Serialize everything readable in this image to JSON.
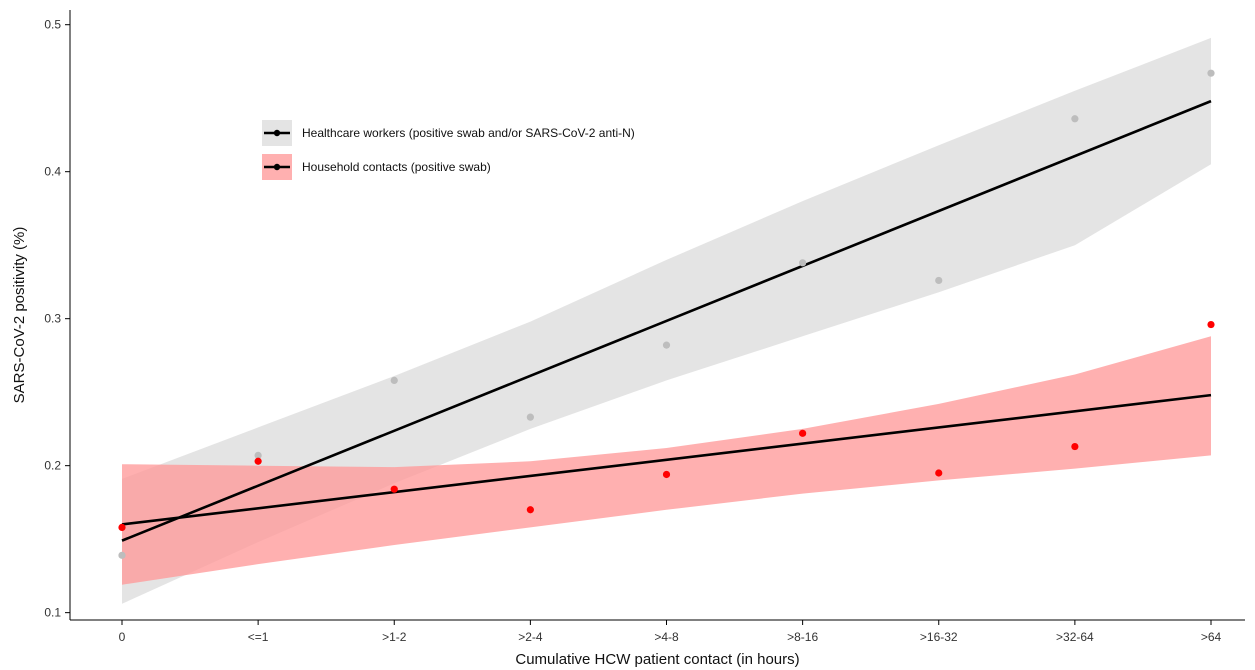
{
  "chart_data": {
    "type": "scatter",
    "title": "",
    "xlabel": "Cumulative HCW patient contact (in hours)",
    "ylabel": "SARS-CoV-2 positivity (%)",
    "categories": [
      "0",
      "<=1",
      ">1-2",
      ">2-4",
      ">4-8",
      ">8-16",
      ">16-32",
      ">32-64",
      ">64"
    ],
    "ylim": [
      0.095,
      0.51
    ],
    "yticks": [
      0.1,
      0.2,
      0.3,
      0.4,
      0.5
    ],
    "ytick_labels": [
      "0.1",
      "0.2",
      "0.3",
      "0.4",
      "0.5"
    ],
    "grid": false,
    "legend_position": "upper-left",
    "series": [
      {
        "name": "Healthcare workers (positive swab and/or SARS-CoV-2 anti-N)",
        "point_color": "#bdbdbd",
        "line_color": "#000000",
        "band_color": "#d9d9d9",
        "values": [
          0.139,
          0.207,
          0.258,
          0.233,
          0.282,
          0.338,
          0.326,
          0.436,
          0.467
        ],
        "fit": {
          "start": 0.149,
          "end": 0.448
        },
        "band_lower": [
          0.106,
          0.148,
          0.188,
          0.225,
          0.258,
          0.288,
          0.318,
          0.35,
          0.405
        ],
        "band_upper": [
          0.191,
          0.226,
          0.261,
          0.298,
          0.34,
          0.38,
          0.418,
          0.455,
          0.491
        ]
      },
      {
        "name": "Household contacts (positive swab)",
        "point_color": "#ff0000",
        "line_color": "#000000",
        "band_color": "#ff9a9a",
        "values": [
          0.158,
          0.203,
          0.184,
          0.17,
          0.194,
          0.222,
          0.195,
          0.213,
          0.296
        ],
        "fit": {
          "start": 0.16,
          "end": 0.248
        },
        "band_lower": [
          0.119,
          0.133,
          0.146,
          0.158,
          0.17,
          0.181,
          0.19,
          0.198,
          0.207
        ],
        "band_upper": [
          0.201,
          0.2,
          0.199,
          0.203,
          0.212,
          0.225,
          0.242,
          0.262,
          0.288
        ]
      }
    ]
  }
}
